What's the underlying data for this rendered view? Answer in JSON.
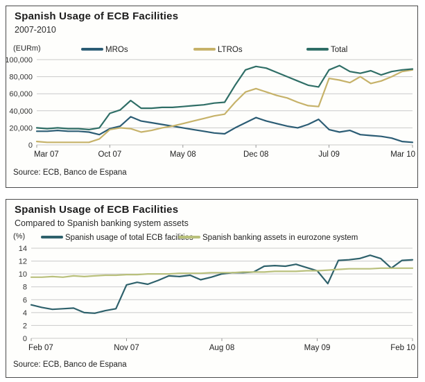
{
  "page": {
    "background": "#ffffff",
    "grid_color": "#c9c9c9",
    "tick_color": "#999999",
    "text_color": "#333333"
  },
  "chart_data": [
    {
      "type": "line",
      "title": "Spanish Usage of ECB Facilities",
      "subtitle": "2007-2010",
      "ylabel": "(EURm)",
      "source": "Source: ECB, Banco de Espana",
      "ylim": [
        0,
        100000
      ],
      "yticks": [
        0,
        20000,
        40000,
        60000,
        80000,
        100000
      ],
      "grid": true,
      "legend_position": "top",
      "x_description": "Monthly, Mar 2007 - Mar 2010",
      "xtick_labels": [
        "Mar 07",
        "Oct 07",
        "May 08",
        "Dec 08",
        "Jul 09",
        "Mar 10"
      ],
      "xtick_positions": [
        0,
        7,
        14,
        21,
        28,
        36
      ],
      "series": [
        {
          "name": "MROs",
          "color": "#2b5c74",
          "values": [
            16000,
            16000,
            17000,
            16000,
            16000,
            15000,
            12000,
            19000,
            22000,
            33000,
            28000,
            26000,
            24000,
            22000,
            20000,
            18000,
            16000,
            14000,
            13000,
            20000,
            26000,
            32000,
            28000,
            25000,
            22000,
            20000,
            24000,
            30000,
            18000,
            15000,
            17000,
            12000,
            11000,
            10000,
            8000,
            4000,
            3000
          ]
        },
        {
          "name": "LTROs",
          "color": "#c6b269",
          "values": [
            4000,
            3000,
            3000,
            3000,
            3000,
            3000,
            7000,
            18000,
            20000,
            19000,
            15000,
            17000,
            20000,
            22000,
            25000,
            28000,
            31000,
            34000,
            36000,
            50000,
            62000,
            66000,
            62000,
            58000,
            55000,
            50000,
            46000,
            45000,
            78000,
            76000,
            73000,
            80000,
            72000,
            75000,
            80000,
            86000,
            88000
          ]
        },
        {
          "name": "Total",
          "color": "#2f6e66",
          "values": [
            20000,
            19000,
            20000,
            19000,
            19000,
            18000,
            20000,
            37000,
            41000,
            52000,
            43000,
            43000,
            44000,
            44000,
            45000,
            46000,
            47000,
            49000,
            50000,
            70000,
            88000,
            92000,
            90000,
            85000,
            80000,
            75000,
            70000,
            68000,
            88000,
            93000,
            86000,
            84000,
            87000,
            82000,
            86000,
            88000,
            89000
          ]
        }
      ]
    },
    {
      "type": "line",
      "title": "Spanish Usage of ECB Facilities",
      "subtitle": "Compared to Spanish banking system assets",
      "ylabel": "(%)",
      "source": "Source: ECB, Banco de Espana",
      "ylim": [
        0,
        14
      ],
      "yticks": [
        0,
        2,
        4,
        6,
        8,
        10,
        12,
        14
      ],
      "grid": true,
      "legend_position": "top",
      "x_description": "Monthly, Feb 2007 - Feb 2010",
      "xtick_labels": [
        "Feb 07",
        "Nov 07",
        "Aug 08",
        "May 09",
        "Feb 10"
      ],
      "xtick_positions": [
        0,
        9,
        18,
        27,
        36
      ],
      "series": [
        {
          "name": "Spanish usage of total ECB facilities",
          "color": "#2e616b",
          "values": [
            5.2,
            4.8,
            4.5,
            4.6,
            4.7,
            4.0,
            3.9,
            4.3,
            4.6,
            8.3,
            8.7,
            8.4,
            9.0,
            9.7,
            9.6,
            9.8,
            9.1,
            9.5,
            10.0,
            10.2,
            10.2,
            10.3,
            11.2,
            11.3,
            11.2,
            11.5,
            11.0,
            10.5,
            8.5,
            12.1,
            12.2,
            12.4,
            12.9,
            12.4,
            10.9,
            12.1,
            12.2
          ]
        },
        {
          "name": "Spanish banking assets in eurozone system",
          "color": "#b9c07c",
          "values": [
            9.5,
            9.5,
            9.6,
            9.5,
            9.7,
            9.6,
            9.7,
            9.8,
            9.8,
            9.9,
            9.9,
            10.0,
            10.0,
            10.0,
            10.1,
            10.1,
            10.1,
            10.2,
            10.2,
            10.2,
            10.3,
            10.3,
            10.3,
            10.4,
            10.4,
            10.4,
            10.5,
            10.5,
            10.6,
            10.7,
            10.8,
            10.8,
            10.8,
            10.9,
            10.9,
            10.9,
            10.9
          ]
        }
      ]
    }
  ]
}
